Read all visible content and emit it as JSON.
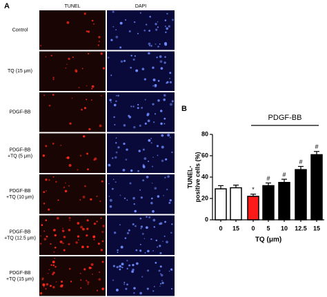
{
  "panel_a": {
    "label": "A",
    "columns": [
      "TUNEL",
      "DAPI"
    ],
    "rows": [
      [
        "Control"
      ],
      [
        "TQ (15 μm)"
      ],
      [
        "PDGF-BB"
      ],
      [
        "PDGF-BB",
        "+TQ (5 μm)"
      ],
      [
        "PDGF-BB",
        "+TQ (10 μm)"
      ],
      [
        "PDGF-BB",
        "+TQ (12.5 μm)"
      ],
      [
        "PDGF-BB",
        "+TQ (15 μm)"
      ]
    ]
  },
  "chart_data": {
    "type": "bar",
    "panel_label": "B",
    "ylabel": [
      "TUNEL-",
      "positive cells (%)"
    ],
    "xlabel": "TQ (μm)",
    "categories": [
      "0",
      "15",
      "0",
      "5",
      "10",
      "12.5",
      "15"
    ],
    "values": [
      29,
      30,
      22,
      32,
      35,
      47,
      61
    ],
    "errors": [
      3,
      2.5,
      2,
      2.5,
      3,
      3,
      3
    ],
    "colors": [
      "#ffffff",
      "#ffffff",
      "#ff1a1a",
      "#000000",
      "#000000",
      "#000000",
      "#000000"
    ],
    "markers": [
      null,
      null,
      "*",
      "#",
      "#",
      "#",
      "#"
    ],
    "group_label": "PDGF-BB",
    "ylim": [
      0,
      80
    ],
    "yticks": [
      0,
      20,
      40,
      60,
      80
    ]
  }
}
